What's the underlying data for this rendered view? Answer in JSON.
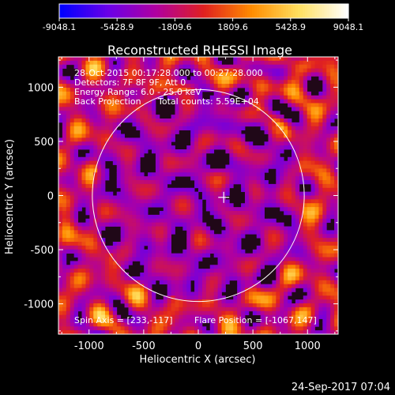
{
  "chart_data": {
    "type": "heatmap",
    "title": "Reconstructed RHESSI Image",
    "xlabel": "Heliocentric X (arcsec)",
    "ylabel": "Heliocentric Y (arcsec)",
    "xlim": [
      -1280,
      1280
    ],
    "ylim": [
      -1280,
      1280
    ],
    "x_ticks": [
      "-1000",
      "-500",
      "0",
      "500",
      "1000"
    ],
    "x_tick_values": [
      -1000,
      -500,
      0,
      500,
      1000
    ],
    "y_ticks": [
      "1000",
      "500",
      "0",
      "-500",
      "-1000"
    ],
    "y_tick_values": [
      1000,
      500,
      0,
      -500,
      -1000
    ],
    "colorbar": {
      "min": -9048.1,
      "max": 9048.1,
      "tick_labels": [
        "-9048.1",
        "-5428.9",
        "-1809.6",
        "1809.6",
        "5428.9",
        "9048.1"
      ],
      "colormap": [
        "#0000ff",
        "#6a00e8",
        "#b000a0",
        "#e02020",
        "#ff8c00",
        "#ffe060",
        "#ffffff"
      ]
    },
    "annotations": [
      "28-Oct-2015 00:17:28.000 to 00:27:28.000",
      "Detectors: 7F 8F 9F, Att 0",
      "Energy Range: 6.0 - 25.0 keV",
      "Back Projection",
      "Total counts: 5.59E+04"
    ],
    "bottom_annotations": {
      "spin_axis": "Spin Axis = [233,-117]",
      "flare_position": "Flare Position = [-1067,147]"
    },
    "solar_limb_radius_arcsec": 970,
    "center_marker": [
      233,
      -117
    ],
    "timestamp": "24-Sep-2017 07:04",
    "colors": {
      "background": "#000000",
      "limb": "#ffffff",
      "dark": "#200818",
      "purple": "#5a1690",
      "red": "#c01818",
      "orange": "#ff7a10",
      "yellow": "#ffe060"
    }
  }
}
